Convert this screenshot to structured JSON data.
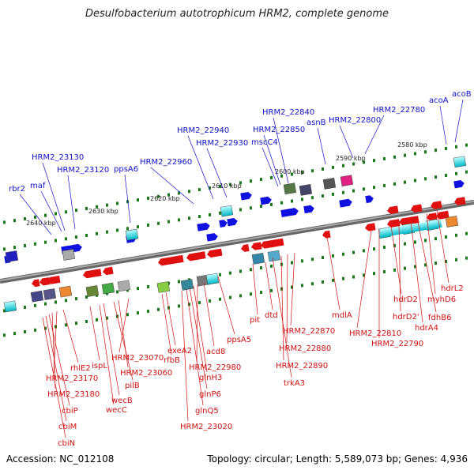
{
  "title": "Desulfobacterium autotrophicum HRM2, complete genome",
  "footer": {
    "accession": "Accession: NC_012108",
    "summary": "Topology: circular; Length: 5,589,073 bp; Genes: 4,936"
  },
  "colors": {
    "forward_gene": "#1010e0",
    "reverse_gene": "#e01010",
    "backbone": "#808080",
    "tick": "#1a7a1a"
  },
  "kbp_labels": [
    "2580 kbp",
    "2590 kbp",
    "2600 kbp",
    "2610 kbp",
    "2620 kbp",
    "2630 kbp",
    "2640 kbp"
  ],
  "top_labels": [
    "acoB",
    "acoA",
    "HRM2_22780",
    "HRM2_22800",
    "asnB",
    "HRM2_22840",
    "HRM2_22850",
    "mscC4",
    "HRM2_22930",
    "HRM2_22940",
    "HRM2_22960",
    "ppsA6",
    "HRM2_23120",
    "HRM2_23130",
    "maf",
    "rbr2"
  ],
  "bottom_labels": [
    "hdrL2",
    "myhD6",
    "fdhB6",
    "hdrA4",
    "hdrD2'",
    "hdrD2",
    "HRM2_22790",
    "HRM2_22810",
    "mdlA",
    "HRM2_22870",
    "HRM2_22880",
    "HRM2_22890",
    "trkA3",
    "dtd",
    "pit",
    "ppsA5",
    "acd8",
    "HRM2_22980",
    "glnH3",
    "glnP6",
    "glnQ5",
    "HRM2_23020",
    "exeA2",
    "rfbB",
    "HRM2_23070",
    "HRM2_23060",
    "pilB",
    "wecB",
    "wecC",
    "ispL",
    "rhlE2",
    "HRM2_23170",
    "HRM2_23180",
    "cbiP",
    "cbiM",
    "cbiN"
  ]
}
